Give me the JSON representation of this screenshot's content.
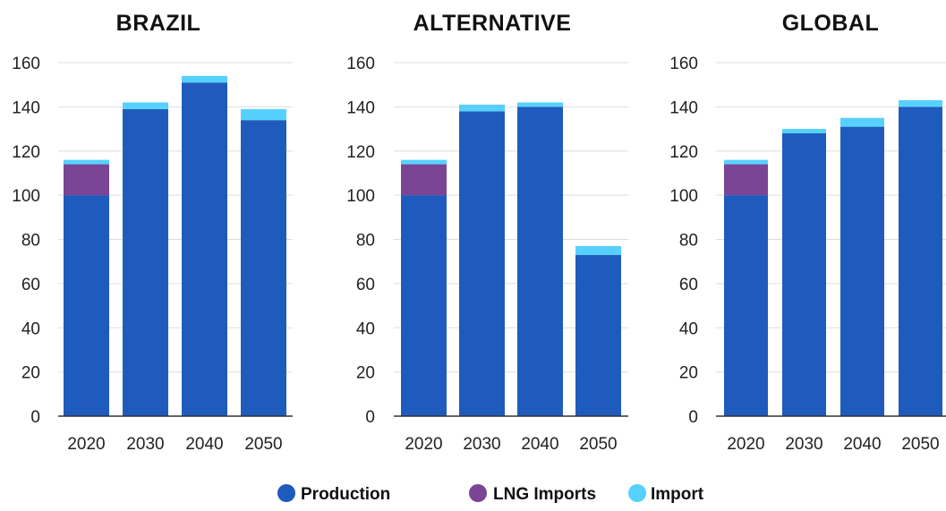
{
  "chart_data": {
    "type": "bar",
    "stacked": true,
    "categories": [
      "2020",
      "2030",
      "2040",
      "2050"
    ],
    "ylim": [
      0,
      160
    ],
    "yticks": [
      0,
      20,
      40,
      60,
      80,
      100,
      120,
      140,
      160
    ],
    "grid": true,
    "legend_position": "bottom-center",
    "legend": [
      {
        "name": "Production",
        "color": "#1f5bbd"
      },
      {
        "name": "LNG Imports",
        "color": "#7a4595"
      },
      {
        "name": "Import",
        "color": "#56d1ff"
      }
    ],
    "panels": [
      {
        "title": "BRAZIL",
        "series": [
          {
            "name": "Production",
            "values": [
              100,
              139,
              151,
              134
            ]
          },
          {
            "name": "LNG Imports",
            "values": [
              14,
              0,
              0,
              0
            ]
          },
          {
            "name": "Import",
            "values": [
              2,
              3,
              3,
              5
            ]
          }
        ]
      },
      {
        "title": "ALTERNATIVE",
        "series": [
          {
            "name": "Production",
            "values": [
              100,
              138,
              140,
              73
            ]
          },
          {
            "name": "LNG Imports",
            "values": [
              14,
              0,
              0,
              0
            ]
          },
          {
            "name": "Import",
            "values": [
              2,
              3,
              2,
              4
            ]
          }
        ]
      },
      {
        "title": "GLOBAL",
        "series": [
          {
            "name": "Production",
            "values": [
              100,
              128,
              131,
              140
            ]
          },
          {
            "name": "LNG Imports",
            "values": [
              14,
              0,
              0,
              0
            ]
          },
          {
            "name": "Import",
            "values": [
              2,
              2,
              4,
              3
            ]
          }
        ]
      }
    ]
  }
}
